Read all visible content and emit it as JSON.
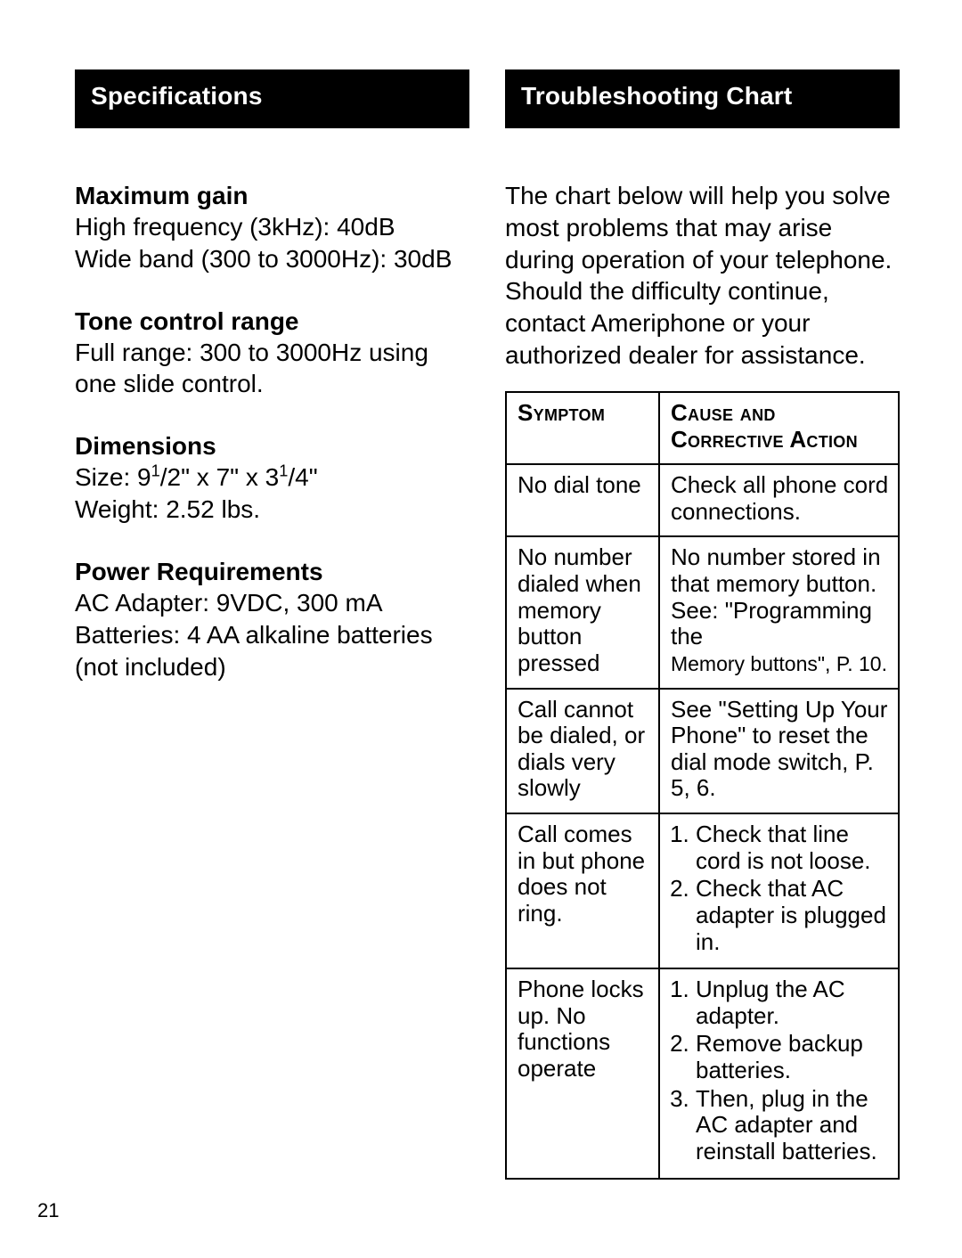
{
  "page_number": "21",
  "left_header": "Specifications",
  "right_header": "Troubleshooting Chart",
  "specs": {
    "max_gain": {
      "title": "Maximum gain",
      "line1": "High frequency (3kHz): 40dB",
      "line2": "Wide band (300 to 3000Hz): 30dB"
    },
    "tone": {
      "title": "Tone control range",
      "body": "Full range: 300 to 3000Hz using one slide control."
    },
    "dimensions": {
      "title": "Dimensions",
      "size_prefix": "Size: 9",
      "size_frac1_num": "1",
      "size_frac1_rest": "/2\" x 7\" x 3",
      "size_frac2_num": "1",
      "size_frac2_rest": "/4\"",
      "weight": "Weight: 2.52 lbs."
    },
    "power": {
      "title": "Power Requirements",
      "line1": "AC Adapter: 9VDC, 300 mA",
      "line2": "Batteries: 4 AA alkaline batteries (not included)"
    }
  },
  "troubleshoot_intro": "The chart below will help you solve most problems that may arise during operation of your telephone. Should the difficulty continue, contact Ameriphone or your authorized dealer for assistance.",
  "table": {
    "header_symptom": "Symptom",
    "header_action": "Cause and Corrective Action",
    "rows": [
      {
        "symptom": "No dial tone",
        "action_plain": "Check all phone cord connections."
      },
      {
        "symptom": "No number dialed when memory button pressed",
        "action_plain": "No number stored in that memory button. See: \"Programming the",
        "action_small": "Memory buttons\", P. 10."
      },
      {
        "symptom": "Call cannot be dialed, or dials very slowly",
        "action_plain": "See \"Setting Up Your Phone\" to reset the dial mode switch, P. 5, 6."
      },
      {
        "symptom": "Call comes in but phone does not ring.",
        "action_steps": [
          "Check that line cord is not loose.",
          "Check that AC adapter is plugged in."
        ]
      },
      {
        "symptom": "Phone locks up. No functions operate",
        "action_steps": [
          "Unplug the AC adapter.",
          "Remove backup batteries.",
          "Then, plug in the AC adapter and reinstall batteries."
        ]
      }
    ]
  }
}
